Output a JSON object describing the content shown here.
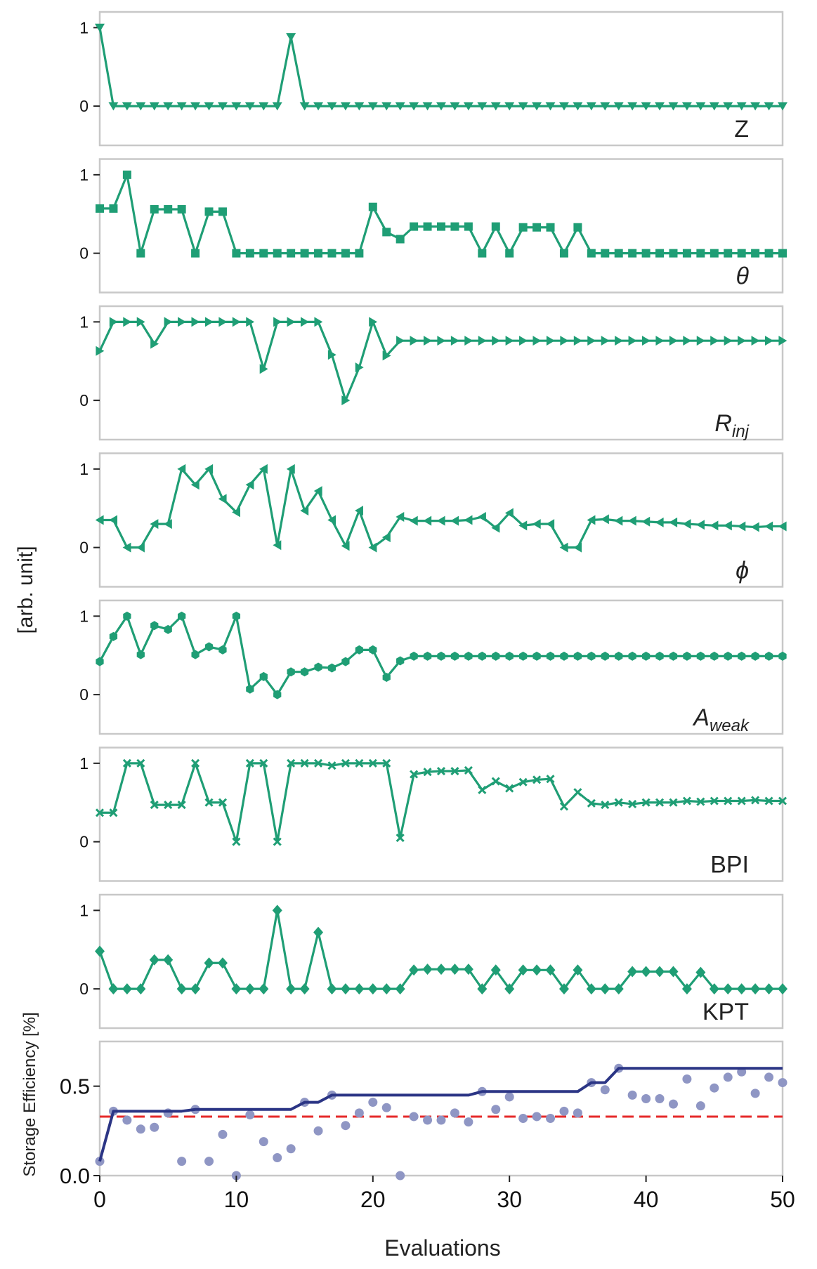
{
  "chart_data": {
    "type": "line",
    "ylabel": "[arb. unit]",
    "xlabel": "Evaluations",
    "xlim": [
      0,
      50
    ],
    "x_ticks": [
      "0",
      "10",
      "20",
      "30",
      "40",
      "50"
    ],
    "line_color": "#1f9e75",
    "panels": [
      {
        "label": "Z",
        "label_parts": [
          {
            "text": "Z",
            "sub": false
          }
        ],
        "italic": false,
        "marker": "triangle-down",
        "ylim": [
          -0.5,
          1.2
        ],
        "y_ticks": [
          "0",
          "1"
        ],
        "values": [
          1.0,
          0.0,
          0.0,
          0.0,
          0.0,
          0.0,
          0.0,
          0.0,
          0.0,
          0.0,
          0.0,
          0.0,
          0.0,
          0.0,
          0.88,
          0.0,
          0.0,
          0.0,
          0.0,
          0.0,
          0.0,
          0.0,
          0.0,
          0.0,
          0.0,
          0.0,
          0.0,
          0.0,
          0.0,
          0.0,
          0.0,
          0.0,
          0.0,
          0.0,
          0.0,
          0.0,
          0.0,
          0.0,
          0.0,
          0.0,
          0.0,
          0.0,
          0.0,
          0.0,
          0.0,
          0.0,
          0.0,
          0.0,
          0.0,
          0.0,
          0.0
        ]
      },
      {
        "label": "θ",
        "label_parts": [
          {
            "text": "θ",
            "sub": false
          }
        ],
        "italic": true,
        "marker": "square",
        "ylim": [
          -0.5,
          1.2
        ],
        "y_ticks": [
          "0",
          "1"
        ],
        "values": [
          0.57,
          0.57,
          1.0,
          0.0,
          0.56,
          0.56,
          0.56,
          0.0,
          0.53,
          0.53,
          0.0,
          0.0,
          0.0,
          0.0,
          0.0,
          0.0,
          0.0,
          0.0,
          0.0,
          0.0,
          0.59,
          0.27,
          0.18,
          0.34,
          0.34,
          0.34,
          0.34,
          0.34,
          0.0,
          0.34,
          0.0,
          0.33,
          0.33,
          0.33,
          0.0,
          0.33,
          0.0,
          0.0,
          0.0,
          0.0,
          0.0,
          0.0,
          0.0,
          0.0,
          0.0,
          0.0,
          0.0,
          0.0,
          0.0,
          0.0,
          0.0
        ]
      },
      {
        "label": "Rinj",
        "label_parts": [
          {
            "text": "R",
            "sub": false
          },
          {
            "text": "inj",
            "sub": true
          }
        ],
        "italic": true,
        "marker": "triangle-right",
        "ylim": [
          -0.5,
          1.2
        ],
        "y_ticks": [
          "0",
          "1"
        ],
        "values": [
          0.63,
          1.0,
          1.0,
          1.0,
          0.72,
          1.0,
          1.0,
          1.0,
          1.0,
          1.0,
          1.0,
          1.0,
          0.4,
          1.0,
          1.0,
          1.0,
          1.0,
          0.58,
          0.0,
          0.42,
          1.0,
          0.57,
          0.76,
          0.76,
          0.76,
          0.76,
          0.76,
          0.76,
          0.76,
          0.76,
          0.76,
          0.76,
          0.76,
          0.76,
          0.76,
          0.76,
          0.76,
          0.76,
          0.76,
          0.76,
          0.76,
          0.76,
          0.76,
          0.76,
          0.76,
          0.76,
          0.76,
          0.76,
          0.76,
          0.76,
          0.76
        ]
      },
      {
        "label": "ϕ",
        "label_parts": [
          {
            "text": "ϕ",
            "sub": false
          }
        ],
        "italic": true,
        "marker": "triangle-left",
        "ylim": [
          -0.5,
          1.2
        ],
        "y_ticks": [
          "0",
          "1"
        ],
        "values": [
          0.35,
          0.35,
          0.0,
          0.0,
          0.3,
          0.3,
          1.0,
          0.8,
          1.0,
          0.62,
          0.45,
          0.8,
          1.0,
          0.03,
          1.0,
          0.47,
          0.72,
          0.35,
          0.02,
          0.47,
          0.0,
          0.13,
          0.39,
          0.34,
          0.34,
          0.34,
          0.34,
          0.35,
          0.39,
          0.25,
          0.44,
          0.28,
          0.3,
          0.3,
          0.0,
          0.0,
          0.35,
          0.36,
          0.34,
          0.34,
          0.33,
          0.32,
          0.32,
          0.3,
          0.29,
          0.28,
          0.28,
          0.27,
          0.26,
          0.27,
          0.27
        ]
      },
      {
        "label": "Aweak",
        "label_parts": [
          {
            "text": "A",
            "sub": false
          },
          {
            "text": "weak",
            "sub": true
          }
        ],
        "italic": true,
        "marker": "hexagon",
        "ylim": [
          -0.5,
          1.2
        ],
        "y_ticks": [
          "0",
          "1"
        ],
        "values": [
          0.42,
          0.74,
          1.0,
          0.51,
          0.88,
          0.83,
          1.0,
          0.51,
          0.61,
          0.57,
          1.0,
          0.07,
          0.23,
          0.0,
          0.29,
          0.29,
          0.35,
          0.34,
          0.42,
          0.57,
          0.57,
          0.22,
          0.43,
          0.49,
          0.49,
          0.49,
          0.49,
          0.49,
          0.49,
          0.49,
          0.49,
          0.49,
          0.49,
          0.49,
          0.49,
          0.49,
          0.49,
          0.49,
          0.49,
          0.49,
          0.49,
          0.49,
          0.49,
          0.49,
          0.49,
          0.49,
          0.49,
          0.49,
          0.49,
          0.49,
          0.49
        ]
      },
      {
        "label": "BPI",
        "label_parts": [
          {
            "text": "BPI",
            "sub": false
          }
        ],
        "italic": false,
        "marker": "x",
        "ylim": [
          -0.5,
          1.2
        ],
        "y_ticks": [
          "0",
          "1"
        ],
        "values": [
          0.37,
          0.37,
          1.0,
          1.0,
          0.47,
          0.47,
          0.47,
          1.0,
          0.5,
          0.5,
          0.0,
          1.0,
          1.0,
          0.0,
          1.0,
          1.0,
          1.0,
          0.97,
          1.0,
          1.0,
          1.0,
          1.0,
          0.05,
          0.86,
          0.89,
          0.9,
          0.9,
          0.91,
          0.66,
          0.77,
          0.68,
          0.76,
          0.79,
          0.8,
          0.45,
          0.63,
          0.49,
          0.47,
          0.5,
          0.48,
          0.5,
          0.5,
          0.5,
          0.52,
          0.51,
          0.52,
          0.52,
          0.52,
          0.53,
          0.52,
          0.52
        ]
      },
      {
        "label": "KPT",
        "label_parts": [
          {
            "text": "KPT",
            "sub": false
          }
        ],
        "italic": false,
        "marker": "diamond",
        "ylim": [
          -0.5,
          1.2
        ],
        "y_ticks": [
          "0",
          "1"
        ],
        "values": [
          0.48,
          0.0,
          0.0,
          0.0,
          0.37,
          0.37,
          0.0,
          0.0,
          0.33,
          0.33,
          0.0,
          0.0,
          0.0,
          1.0,
          0.0,
          0.0,
          0.72,
          0.0,
          0.0,
          0.0,
          0.0,
          0.0,
          0.0,
          0.24,
          0.25,
          0.25,
          0.25,
          0.25,
          0.0,
          0.24,
          0.0,
          0.24,
          0.24,
          0.24,
          0.0,
          0.24,
          0.0,
          0.0,
          0.0,
          0.22,
          0.22,
          0.22,
          0.22,
          0.0,
          0.21,
          0.0,
          0.0,
          0.0,
          0.0,
          0.0,
          0.0
        ]
      }
    ],
    "efficiency": {
      "ylabel": "Storage Efficiency [%]",
      "ylim": [
        0.0,
        0.75
      ],
      "y_ticks": [
        {
          "value": 0.0,
          "label": "0.0"
        },
        {
          "value": 0.5,
          "label": "0.5"
        }
      ],
      "scatter_color": "#8f96c4",
      "best_line_color": "#2b3585",
      "reference_color": "#e52a2a",
      "reference_value": 0.33,
      "scatter_values": [
        0.08,
        0.36,
        0.31,
        0.26,
        0.27,
        0.35,
        0.08,
        0.37,
        0.08,
        0.23,
        0.0,
        0.34,
        0.19,
        0.1,
        0.15,
        0.41,
        0.25,
        0.45,
        0.28,
        0.35,
        0.41,
        0.38,
        0.0,
        0.33,
        0.31,
        0.31,
        0.35,
        0.3,
        0.47,
        0.37,
        0.44,
        0.32,
        0.33,
        0.32,
        0.36,
        0.35,
        0.52,
        0.48,
        0.6,
        0.45,
        0.43,
        0.43,
        0.4,
        0.54,
        0.39,
        0.49,
        0.55,
        0.58,
        0.46,
        0.55,
        0.52
      ],
      "best_values": [
        0.08,
        0.36,
        0.36,
        0.36,
        0.36,
        0.36,
        0.36,
        0.37,
        0.37,
        0.37,
        0.37,
        0.37,
        0.37,
        0.37,
        0.37,
        0.41,
        0.41,
        0.45,
        0.45,
        0.45,
        0.45,
        0.45,
        0.45,
        0.45,
        0.45,
        0.45,
        0.45,
        0.45,
        0.47,
        0.47,
        0.47,
        0.47,
        0.47,
        0.47,
        0.47,
        0.47,
        0.52,
        0.52,
        0.6,
        0.6,
        0.6,
        0.6,
        0.6,
        0.6,
        0.6,
        0.6,
        0.6,
        0.6,
        0.6,
        0.6,
        0.6
      ]
    }
  }
}
